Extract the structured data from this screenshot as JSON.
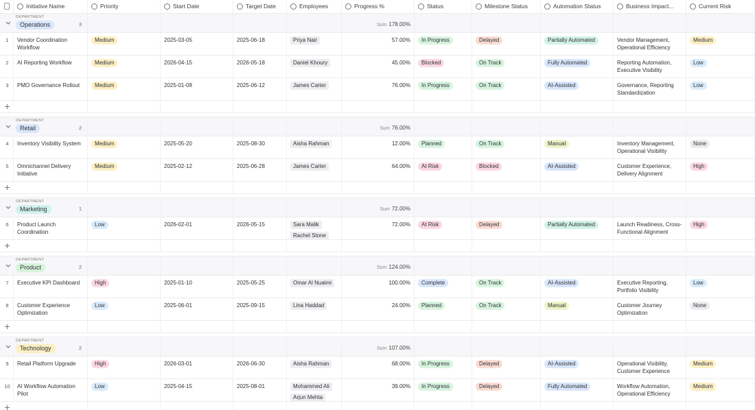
{
  "columns": [
    "Initiative Name",
    "Priority",
    "Start Date",
    "Target Date",
    "Employees",
    "Progress %",
    "Status",
    "Milestone Status",
    "Automation Status",
    "Business Impact...",
    "Current Risk"
  ],
  "pill_colors": {
    "Medium": "#fcefc4",
    "Low": "#d9ebfb",
    "High": "#fbd8e3",
    "None": "#ececee",
    "In Progress": "#d8f4df",
    "Blocked": "#fbd8e3",
    "Planned": "#d8f4df",
    "At Risk": "#fbd8e3",
    "Complete": "#d9e6fb",
    "Delayed": "#fbdcd4",
    "On Track": "#d8f4df",
    "Partially Automated": "#d2f3e6",
    "Fully Automated": "#d9e6fb",
    "AI-Assisted": "#d9e6fb",
    "Manual": "#eef3c8",
    "Operations": "#d9e6fb",
    "Retail": "#d9e6fb",
    "Marketing": "#d2f1ec",
    "Product": "#d8f4dc",
    "Technology": "#fcefc4"
  },
  "groups": [
    {
      "label": "DEPARTMENT",
      "name": "Operations",
      "count": 3,
      "sum_label": "Sum",
      "sum": "178.00%",
      "rows": [
        {
          "num": 1,
          "cells": [
            "Vendor Coordination Workflow",
            "Medium",
            "2025-03-05",
            "2025-06-18",
            [
              "Priya Nair"
            ],
            "57.00%",
            "In Progress",
            "Delayed",
            "Partially Automated",
            "Vendor Management, Operational Efficiency",
            "Medium"
          ]
        },
        {
          "num": 2,
          "cells": [
            "AI Reporting Workflow",
            "Medium",
            "2026-04-15",
            "2026-05-18",
            [
              "Daniel Khoury"
            ],
            "45.00%",
            "Blocked",
            "On Track",
            "Fully Automated",
            "Reporting Automation, Executive Visibility",
            "Low"
          ]
        },
        {
          "num": 3,
          "cells": [
            "PMO Governance Rollout",
            "Medium",
            "2025-01-08",
            "2025-06-12",
            [
              "James Carter"
            ],
            "76.00%",
            "In Progress",
            "On Track",
            "AI-Assisted",
            "Governance, Reporting Standardization",
            "Low"
          ]
        }
      ]
    },
    {
      "label": "DEPARTMENT",
      "name": "Retail",
      "count": 2,
      "sum_label": "Sum",
      "sum": "76.00%",
      "rows": [
        {
          "num": 4,
          "cells": [
            "Inventory Visibility System",
            "Medium",
            "2025-05-20",
            "2025-08-30",
            [
              "Aisha Rahman"
            ],
            "12.00%",
            "Planned",
            "On Track",
            "Manual",
            "Inventory Management, Operational Visibility",
            "None"
          ]
        },
        {
          "num": 5,
          "cells": [
            "Omnichannel Delivery Initiative",
            "Medium",
            "2025-02-12",
            "2025-06-28",
            [
              "James Carter"
            ],
            "64.00%",
            "At Risk",
            "Blocked",
            "AI-Assisted",
            "Customer Experience, Delivery Alignment",
            "High"
          ]
        }
      ]
    },
    {
      "label": "DEPARTMENT",
      "name": "Marketing",
      "count": 1,
      "sum_label": "Sum",
      "sum": "72.00%",
      "rows": [
        {
          "num": 6,
          "cells": [
            "Product Launch Coordination",
            "Low",
            "2026-02-01",
            "2026-05-15",
            [
              "Sara Malik",
              "Rachel Stone"
            ],
            "72.00%",
            "At Risk",
            "Delayed",
            "Partially Automated",
            "Launch Readiness, Cross-Functional Alignment",
            "High"
          ]
        }
      ]
    },
    {
      "label": "DEPARTMENT",
      "name": "Product",
      "count": 2,
      "sum_label": "Sum",
      "sum": "124.00%",
      "rows": [
        {
          "num": 7,
          "cells": [
            "Executive KPI Dashboard",
            "High",
            "2025-01-10",
            "2025-05-25",
            [
              "Omar Al Nuaimi"
            ],
            "100.00%",
            "Complete",
            "On Track",
            "AI-Assisted",
            "Executive Reporting, Portfolio Visibility",
            "Low"
          ]
        },
        {
          "num": 8,
          "cells": [
            "Customer Experience Optimization",
            "Low",
            "2025-06-01",
            "2025-09-15",
            [
              "Lina Haddad"
            ],
            "24.00%",
            "Planned",
            "On Track",
            "Manual",
            "Customer Journey Optimization",
            "None"
          ]
        }
      ]
    },
    {
      "label": "DEPARTMENT",
      "name": "Technology",
      "count": 2,
      "sum_label": "Sum",
      "sum": "107.00%",
      "rows": [
        {
          "num": 9,
          "cells": [
            "Retail Platform Upgrade",
            "High",
            "2026-03-01",
            "2026-06-30",
            [
              "Aisha Rahman"
            ],
            "68.00%",
            "In Progress",
            "Delayed",
            "AI-Assisted",
            "Operational Visibility, Customer Experience",
            "Medium"
          ]
        },
        {
          "num": 10,
          "cells": [
            "AI Workflow Automation Pilot",
            "Low",
            "2025-04-15",
            "2025-08-01",
            [
              "Mohammed Ali",
              "Arjun Mehta"
            ],
            "39.00%",
            "In Progress",
            "Delayed",
            "Fully Automated",
            "Workflow Automation, Operational Efficiency",
            "Medium"
          ]
        }
      ]
    }
  ]
}
